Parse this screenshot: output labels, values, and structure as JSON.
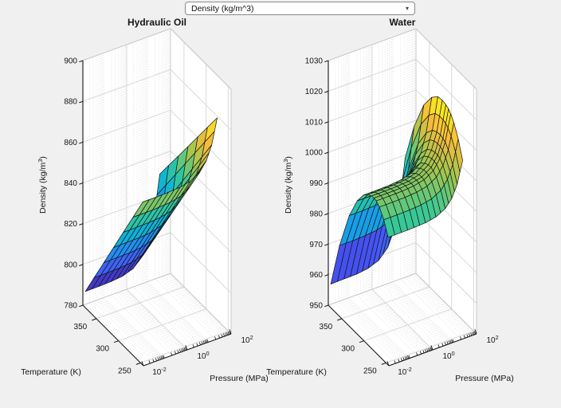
{
  "dropdown": {
    "value": "Density (kg/m^3)",
    "arrow_icon": "▾"
  },
  "colors": {
    "background": "#f0f0f0",
    "axis": "#151515",
    "wall_fill": "#ffffff",
    "grid_major": "#d9d9d9",
    "grid_minor": "#e2e2e2",
    "wall_edge": "#c9c9c9",
    "mesh_edge": "#141414"
  },
  "chart_data": [
    {
      "type": "surface",
      "title": "Hydraulic Oil",
      "xlabel": "Pressure (MPa)",
      "ylabel": "Temperature (K)",
      "zlabel": "Density (kg/m^3)",
      "x_scale": "log10",
      "x_tick_exponents": [
        -2,
        0,
        2
      ],
      "y_ticks": [
        250,
        300,
        350
      ],
      "z_ticks": [
        780,
        800,
        820,
        840,
        860,
        880,
        900
      ],
      "z_range": [
        780,
        900
      ],
      "T_values": [
        245,
        267,
        289,
        311,
        333,
        355,
        375
      ],
      "P_values_MPa": [
        0.01,
        0.04,
        0.15,
        0.5,
        1.5,
        4,
        8,
        14,
        25
      ],
      "density": [
        [
          860.0,
          860.0,
          860.2,
          860.6,
          861.7,
          864.5,
          869.0,
          875.7,
          888.0
        ],
        [
          847.8,
          847.8,
          848.0,
          848.4,
          849.6,
          852.7,
          857.6,
          865.0,
          878.6
        ],
        [
          835.6,
          835.7,
          835.8,
          836.3,
          837.6,
          841.0,
          846.3,
          854.4,
          869.1
        ],
        [
          823.4,
          823.5,
          823.6,
          824.1,
          825.6,
          829.2,
          835.0,
          843.7,
          859.7
        ],
        [
          811.2,
          811.3,
          811.4,
          812.0,
          813.5,
          817.4,
          823.7,
          833.0,
          850.2
        ],
        [
          799.0,
          799.1,
          799.3,
          799.8,
          801.5,
          805.7,
          812.4,
          822.4,
          840.8
        ],
        [
          787.9,
          788.0,
          788.2,
          788.8,
          790.6,
          795.0,
          802.1,
          812.7,
          832.2
        ]
      ]
    },
    {
      "type": "surface",
      "title": "Water",
      "xlabel": "Pressure (MPa)",
      "ylabel": "Temperature (K)",
      "zlabel": "Density (kg/m^3)",
      "x_scale": "log10",
      "x_tick_exponents": [
        -2,
        0,
        2
      ],
      "y_ticks": [
        250,
        300,
        350
      ],
      "z_ticks": [
        950,
        960,
        970,
        980,
        990,
        1000,
        1010,
        1020,
        1030
      ],
      "z_range": [
        950,
        1030
      ],
      "T_values": [
        245,
        255,
        265,
        272,
        277,
        283,
        291,
        301,
        315,
        333,
        355,
        375
      ],
      "P_values_MPa": [
        0.01,
        0.04,
        0.15,
        0.5,
        1.5,
        4,
        8,
        14,
        25
      ],
      "density": [
        [
          991.8,
          991.8,
          991.9,
          992.1,
          992.8,
          994.4,
          997.0,
          1000.9,
          1008.1
        ],
        [
          996.1,
          996.1,
          996.2,
          996.5,
          997.2,
          998.9,
          1001.7,
          1005.9,
          1013.6
        ],
        [
          998.8,
          998.8,
          998.9,
          999.2,
          999.9,
          1001.8,
          1004.8,
          1009.3,
          1017.6
        ],
        [
          999.8,
          999.8,
          999.9,
          1000.2,
          1001.0,
          1002.9,
          1006.1,
          1010.8,
          1019.4
        ],
        [
          1000.0,
          1000.0,
          1000.1,
          1000.4,
          1001.2,
          1003.2,
          1006.5,
          1011.3,
          1020.3
        ],
        [
          999.8,
          999.8,
          999.9,
          1000.2,
          1001.1,
          1003.2,
          1006.5,
          1011.6,
          1020.8
        ],
        [
          999.1,
          999.1,
          999.2,
          999.5,
          1000.4,
          1002.6,
          1006.1,
          1011.4,
          1021.1
        ],
        [
          997.5,
          997.5,
          997.6,
          998.0,
          998.9,
          1001.2,
          1004.9,
          1010.5,
          1020.8
        ],
        [
          993.6,
          993.6,
          993.8,
          994.1,
          995.1,
          997.6,
          1001.6,
          1007.6,
          1018.6
        ],
        [
          986.2,
          986.2,
          986.4,
          986.7,
          987.8,
          990.6,
          994.9,
          1001.5,
          1013.5
        ],
        [
          973.2,
          973.2,
          973.4,
          973.8,
          975.0,
          978.0,
          982.8,
          990.0,
          1003.2
        ],
        [
          957.7,
          957.8,
          957.9,
          958.4,
          959.7,
          962.9,
          968.1,
          975.9,
          990.2
        ]
      ]
    }
  ]
}
